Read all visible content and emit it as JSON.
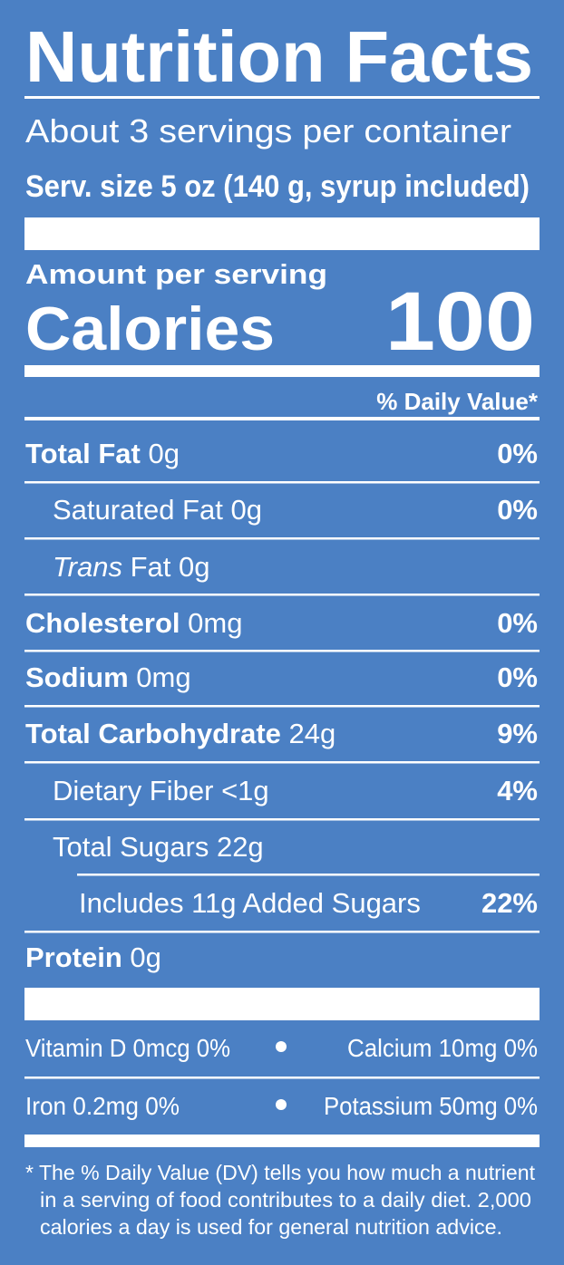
{
  "header": {
    "title": "Nutrition Facts",
    "servings": "About 3 servings per container",
    "serving_size": "Serv. size 5 oz (140 g, syrup included)"
  },
  "calories": {
    "amount_label": "Amount per serving",
    "label": "Calories",
    "value": 100
  },
  "daily_value_header": "% Daily Value*",
  "nutrients": [
    {
      "name": "Total Fat",
      "amount": "0g",
      "dv": "0%"
    },
    {
      "name": "Saturated Fat",
      "amount": "0g",
      "dv": "0%"
    },
    {
      "name_italic": "Trans",
      "name": "Fat",
      "amount": "0g"
    },
    {
      "name": "Cholesterol",
      "amount": "0mg",
      "dv": "0%"
    },
    {
      "name": "Sodium",
      "amount": "0mg",
      "dv": "0%"
    },
    {
      "name": "Total Carbohydrate",
      "amount": "24g",
      "dv": "9%"
    },
    {
      "name": "Dietary Fiber",
      "amount": "<1g",
      "dv": "4%"
    },
    {
      "name": "Total Sugars",
      "amount": "22g"
    },
    {
      "name": "Includes 11g Added Sugars",
      "dv": "22%"
    },
    {
      "name": "Protein",
      "amount": "0g"
    }
  ],
  "micronutrients": [
    [
      "Vitamin D 0mcg 0%",
      "Calcium 10mg 0%"
    ],
    [
      "Iron 0.2mg 0%",
      "Potassium 50mg 0%"
    ]
  ],
  "footnote": [
    "* The % Daily Value (DV) tells you how much a nutrient",
    "in a serving of food contributes to a daily diet. 2,000",
    "calories a day is used for general nutrition advice."
  ]
}
